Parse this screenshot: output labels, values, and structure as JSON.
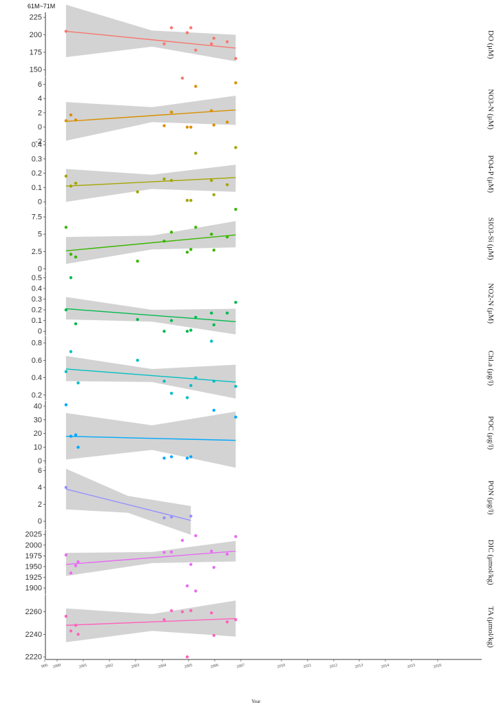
{
  "chart_data": {
    "type": "scatter",
    "title": "61M~71M",
    "xlabel": "Year",
    "xlim": [
      1999.0,
      2017.0
    ],
    "x_ticks": [
      "999",
      "2000",
      "2001",
      "2002",
      "2003",
      "2004",
      "2005",
      "2006",
      "2007",
      "2010",
      "2011",
      "2012",
      "2013",
      "2014",
      "2015",
      "2016"
    ],
    "grid": false,
    "trend": "linear fit with shaded confidence band",
    "band_color": "#d3d3d3",
    "panels": [
      {
        "label": "DO (μM)",
        "color": "#f8766d",
        "ylim": [
          140,
          232
        ],
        "yticks": [
          150,
          175,
          200,
          225
        ],
        "points": [
          [
            1999.85,
            205
          ],
          [
            2003.9,
            187
          ],
          [
            2004.2,
            210
          ],
          [
            2004.65,
            138
          ],
          [
            2004.85,
            203
          ],
          [
            2005.0,
            210
          ],
          [
            2005.2,
            178
          ],
          [
            2005.85,
            187
          ],
          [
            2005.95,
            195
          ],
          [
            2006.5,
            190
          ],
          [
            2006.85,
            166
          ]
        ],
        "fit": [
          1999.85,
          205,
          2006.85,
          181
        ],
        "band": [
          [
            1999.85,
            168,
            243
          ],
          [
            2003.4,
            183,
            206
          ],
          [
            2006.85,
            162,
            200
          ]
        ]
      },
      {
        "label": "NO3-N (μM)",
        "color": "#d89000",
        "ylim": [
          -2,
          7
        ],
        "yticks": [
          -2,
          0,
          2,
          4,
          6
        ],
        "points": [
          [
            1999.85,
            0.9
          ],
          [
            2000.05,
            1.7
          ],
          [
            2000.25,
            1.0
          ],
          [
            2003.9,
            0.2
          ],
          [
            2004.2,
            2.1
          ],
          [
            2004.85,
            0.0
          ],
          [
            2005.0,
            0.0
          ],
          [
            2005.2,
            5.7
          ],
          [
            2005.85,
            2.3
          ],
          [
            2005.95,
            0.3
          ],
          [
            2006.5,
            0.7
          ],
          [
            2006.85,
            6.2
          ]
        ],
        "fit": [
          1999.85,
          0.8,
          2006.85,
          2.4
        ],
        "band": [
          [
            1999.85,
            -1.9,
            3.5
          ],
          [
            2003.4,
            0.7,
            2.8
          ],
          [
            2006.85,
            0.3,
            4.4
          ]
        ]
      },
      {
        "label": "PO4-P (μM)",
        "color": "#a3a500",
        "ylim": [
          -0.03,
          0.42
        ],
        "yticks": [
          0.0,
          0.1,
          0.2,
          0.3,
          0.4
        ],
        "points": [
          [
            1999.85,
            0.18
          ],
          [
            2000.05,
            0.11
          ],
          [
            2000.25,
            0.13
          ],
          [
            2002.8,
            0.07
          ],
          [
            2003.9,
            0.16
          ],
          [
            2004.2,
            0.15
          ],
          [
            2004.85,
            0.01
          ],
          [
            2005.0,
            0.01
          ],
          [
            2005.2,
            0.34
          ],
          [
            2005.85,
            0.15
          ],
          [
            2005.95,
            0.05
          ],
          [
            2006.5,
            0.12
          ],
          [
            2006.85,
            0.38
          ]
        ],
        "fit": [
          1999.85,
          0.11,
          2006.85,
          0.17
        ],
        "band": [
          [
            1999.85,
            0.0,
            0.23
          ],
          [
            2003.4,
            0.09,
            0.19
          ],
          [
            2006.85,
            0.07,
            0.26
          ]
        ]
      },
      {
        "label": "SIO3-Si (μM)",
        "color": "#39b600",
        "ylim": [
          -0.3,
          9.0
        ],
        "yticks": [
          0.0,
          2.5,
          5.0,
          7.5
        ],
        "points": [
          [
            1999.85,
            6.0
          ],
          [
            2000.05,
            2.1
          ],
          [
            2000.25,
            1.7
          ],
          [
            2002.8,
            1.1
          ],
          [
            2003.9,
            4.0
          ],
          [
            2004.2,
            5.3
          ],
          [
            2004.85,
            2.4
          ],
          [
            2005.0,
            2.8
          ],
          [
            2005.2,
            6.0
          ],
          [
            2005.85,
            5.0
          ],
          [
            2005.95,
            2.7
          ],
          [
            2006.5,
            4.6
          ],
          [
            2006.85,
            8.6
          ]
        ],
        "fit": [
          1999.85,
          2.6,
          2006.85,
          4.9
        ],
        "band": [
          [
            1999.85,
            0.7,
            4.6
          ],
          [
            2003.4,
            2.8,
            4.8
          ],
          [
            2006.85,
            3.1,
            6.9
          ]
        ]
      },
      {
        "label": "NO2-N (μM)",
        "color": "#00bb4e",
        "ylim": [
          -0.04,
          0.56
        ],
        "yticks": [
          0.0,
          0.1,
          0.2,
          0.3,
          0.4,
          0.5
        ],
        "points": [
          [
            1999.85,
            0.2
          ],
          [
            2000.05,
            0.5
          ],
          [
            2000.25,
            0.07
          ],
          [
            2002.8,
            0.11
          ],
          [
            2003.9,
            0.0
          ],
          [
            2004.2,
            0.1
          ],
          [
            2004.85,
            0.0
          ],
          [
            2005.0,
            0.01
          ],
          [
            2005.2,
            0.13
          ],
          [
            2005.85,
            0.17
          ],
          [
            2005.95,
            0.06
          ],
          [
            2006.5,
            0.17
          ],
          [
            2006.85,
            0.27
          ]
        ],
        "fit": [
          1999.85,
          0.21,
          2006.85,
          0.09
        ],
        "band": [
          [
            1999.85,
            0.11,
            0.32
          ],
          [
            2003.4,
            0.09,
            0.2
          ],
          [
            2006.85,
            -0.03,
            0.21
          ]
        ]
      },
      {
        "label": "Chl.a (μg/l)",
        "color": "#00bfc4",
        "ylim": [
          0.14,
          0.88
        ],
        "yticks": [
          0.2,
          0.4,
          0.6,
          0.8
        ],
        "points": [
          [
            1999.85,
            0.47
          ],
          [
            2000.05,
            0.7
          ],
          [
            2000.35,
            0.34
          ],
          [
            2002.8,
            0.6
          ],
          [
            2003.9,
            0.36
          ],
          [
            2004.2,
            0.22
          ],
          [
            2004.85,
            0.17
          ],
          [
            2005.0,
            0.31
          ],
          [
            2005.2,
            0.4
          ],
          [
            2005.85,
            0.82
          ],
          [
            2005.95,
            0.36
          ],
          [
            2006.85,
            0.3
          ]
        ],
        "fit": [
          1999.85,
          0.5,
          2006.85,
          0.35
        ],
        "band": [
          [
            1999.85,
            0.36,
            0.65
          ],
          [
            2003.4,
            0.35,
            0.5
          ],
          [
            2006.85,
            0.16,
            0.55
          ]
        ]
      },
      {
        "label": "POC (μg/l)",
        "color": "#00a9ff",
        "ylim": [
          -3,
          44
        ],
        "yticks": [
          0,
          10,
          20,
          30,
          40
        ],
        "points": [
          [
            1999.85,
            41
          ],
          [
            2000.05,
            18
          ],
          [
            2000.25,
            19
          ],
          [
            2000.35,
            10
          ],
          [
            2003.9,
            2
          ],
          [
            2004.2,
            3
          ],
          [
            2004.85,
            2
          ],
          [
            2005.0,
            3
          ],
          [
            2005.95,
            37
          ],
          [
            2006.85,
            32
          ]
        ],
        "fit": [
          1999.85,
          18,
          2006.85,
          15
        ],
        "band": [
          [
            1999.85,
            1,
            35
          ],
          [
            2003.4,
            8,
            26
          ],
          [
            2006.85,
            -5,
            36
          ]
        ]
      },
      {
        "label": "PON (μg/l)",
        "color": "#9590ff",
        "ylim": [
          -1.0,
          6.6
        ],
        "yticks": [
          0,
          2,
          4,
          6
        ],
        "points": [
          [
            1999.85,
            4.0
          ],
          [
            2003.9,
            0.4
          ],
          [
            2004.2,
            0.5
          ],
          [
            2005.0,
            0.6
          ]
        ],
        "fit": [
          1999.85,
          3.8,
          2005.0,
          0.1
        ],
        "band": [
          [
            1999.85,
            1.4,
            6.2
          ],
          [
            2002.4,
            1.0,
            3.0
          ],
          [
            2005.0,
            -1.6,
            1.8
          ]
        ]
      },
      {
        "label": "DIC (μmol/kg)",
        "color": "#e76bf3",
        "ylim": [
          1885,
          2035
        ],
        "yticks": [
          1900,
          1925,
          1950,
          1975,
          2000,
          2025
        ],
        "points": [
          [
            1999.85,
            1977
          ],
          [
            2000.05,
            1935
          ],
          [
            2000.25,
            1952
          ],
          [
            2000.35,
            1961
          ],
          [
            2003.9,
            1983
          ],
          [
            2004.2,
            1984
          ],
          [
            2004.65,
            2011
          ],
          [
            2004.85,
            1905
          ],
          [
            2005.0,
            1955
          ],
          [
            2005.2,
            1893
          ],
          [
            2005.2,
            2022
          ],
          [
            2005.85,
            1986
          ],
          [
            2005.95,
            1948
          ],
          [
            2006.5,
            1979
          ],
          [
            2006.85,
            2020
          ]
        ],
        "fit": [
          1999.85,
          1955,
          2006.85,
          1986
        ],
        "band": [
          [
            1999.85,
            1928,
            1982
          ],
          [
            2003.4,
            1958,
            1984
          ],
          [
            2006.85,
            1962,
            2010
          ]
        ]
      },
      {
        "label": "TA (μmol/kg)",
        "color": "#ff62bc",
        "ylim": [
          2218,
          2275
        ],
        "yticks": [
          2220,
          2240,
          2260
        ],
        "points": [
          [
            1999.85,
            2256
          ],
          [
            2000.05,
            2243
          ],
          [
            2000.25,
            2248
          ],
          [
            2000.35,
            2240
          ],
          [
            2003.9,
            2253
          ],
          [
            2004.2,
            2261
          ],
          [
            2004.65,
            2260
          ],
          [
            2004.85,
            2220
          ],
          [
            2005.0,
            2261
          ],
          [
            2005.85,
            2259
          ],
          [
            2005.95,
            2239
          ],
          [
            2006.5,
            2251
          ],
          [
            2006.85,
            2253
          ]
        ],
        "fit": [
          1999.85,
          2248,
          2006.85,
          2254
        ],
        "band": [
          [
            1999.85,
            2233,
            2263
          ],
          [
            2003.4,
            2243,
            2258
          ],
          [
            2006.85,
            2238,
            2270
          ]
        ]
      }
    ]
  }
}
